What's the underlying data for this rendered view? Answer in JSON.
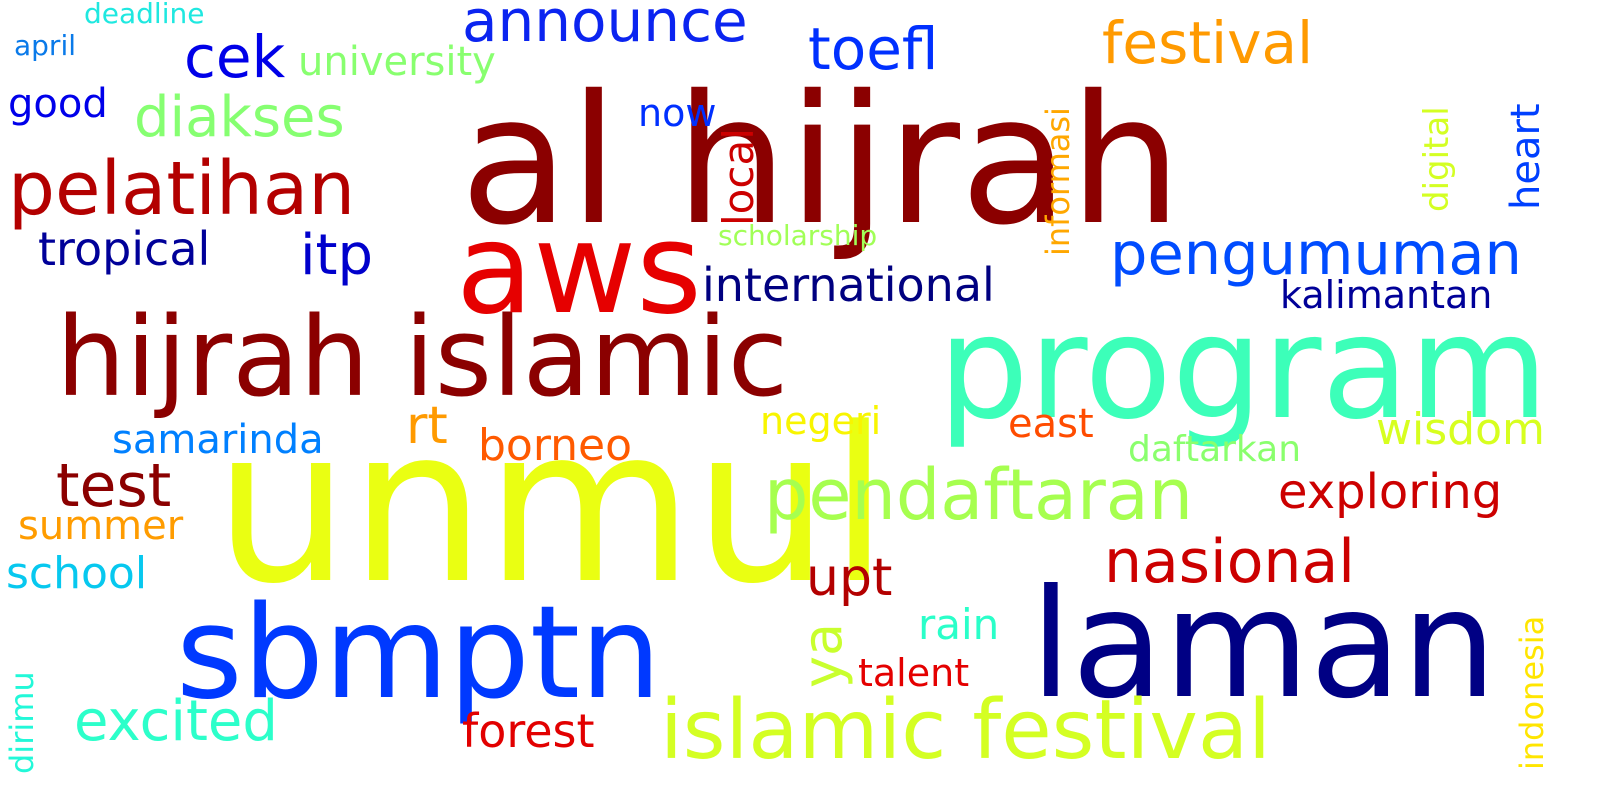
{
  "words": [
    {
      "id": "al-hijrah",
      "text": "al hijrah",
      "color": "#8b0000"
    },
    {
      "id": "unmul",
      "text": "unmul",
      "color": "#eaff12"
    },
    {
      "id": "program",
      "text": "program",
      "color": "#3cffb9"
    },
    {
      "id": "sbmptn",
      "text": "sbmptn",
      "color": "#0039ff"
    },
    {
      "id": "laman",
      "text": "laman",
      "color": "#000084"
    },
    {
      "id": "hijrah-islamic",
      "text": "hijrah islamic",
      "color": "#8b0000"
    },
    {
      "id": "aws",
      "text": "aws",
      "color": "#e60000"
    },
    {
      "id": "islamic-festival",
      "text": "islamic festival",
      "color": "#d4ff23"
    },
    {
      "id": "pendaftaran",
      "text": "pendaftaran",
      "color": "#a6ff4f"
    },
    {
      "id": "pelatihan",
      "text": "pelatihan",
      "color": "#b30000"
    },
    {
      "id": "announce",
      "text": "announce",
      "color": "#0b24f0"
    },
    {
      "id": "festival",
      "text": "festival",
      "color": "#ff9a00"
    },
    {
      "id": "pengumuman",
      "text": "pengumuman",
      "color": "#004cff"
    },
    {
      "id": "nasional",
      "text": "nasional",
      "color": "#cc0000"
    },
    {
      "id": "test",
      "text": "test",
      "color": "#8b0000"
    },
    {
      "id": "excited",
      "text": "excited",
      "color": "#2cffca"
    },
    {
      "id": "toefl",
      "text": "toefl",
      "color": "#0030ff"
    },
    {
      "id": "international",
      "text": "international",
      "color": "#000080"
    },
    {
      "id": "diakses",
      "text": "diakses",
      "color": "#86ff71"
    },
    {
      "id": "cek",
      "text": "cek",
      "color": "#0000e8"
    },
    {
      "id": "itp",
      "text": "itp",
      "color": "#0000cc"
    },
    {
      "id": "exploring",
      "text": "exploring",
      "color": "#cc0000"
    },
    {
      "id": "ya",
      "text": "ya",
      "color": "#c9ff2e"
    },
    {
      "id": "upt",
      "text": "upt",
      "color": "#b30000"
    },
    {
      "id": "tropical",
      "text": "tropical",
      "color": "#000099"
    },
    {
      "id": "borneo",
      "text": "borneo",
      "color": "#ff5a00"
    },
    {
      "id": "wisdom",
      "text": "wisdom",
      "color": "#d7ff1f"
    },
    {
      "id": "kalimantan",
      "text": "kalimantan",
      "color": "#000098"
    },
    {
      "id": "samarinda",
      "text": "samarinda",
      "color": "#0080ff"
    },
    {
      "id": "school",
      "text": "school",
      "color": "#07c8ef"
    },
    {
      "id": "summer",
      "text": "summer",
      "color": "#ff9c00"
    },
    {
      "id": "forest",
      "text": "forest",
      "color": "#e20000"
    },
    {
      "id": "rt",
      "text": "rt",
      "color": "#ff9a00"
    },
    {
      "id": "negeri",
      "text": "negeri",
      "color": "#f8f500"
    },
    {
      "id": "rain",
      "text": "rain",
      "color": "#2affc9"
    },
    {
      "id": "talent",
      "text": "talent",
      "color": "#e40000"
    },
    {
      "id": "good",
      "text": "good",
      "color": "#0000ea"
    },
    {
      "id": "university",
      "text": "university",
      "color": "#88ff6f"
    },
    {
      "id": "east",
      "text": "east",
      "color": "#ff4c00"
    },
    {
      "id": "daftarkan",
      "text": "daftarkan",
      "color": "#8aff6d"
    },
    {
      "id": "now",
      "text": "now",
      "color": "#0030ff"
    },
    {
      "id": "local",
      "text": "local",
      "color": "#cc0000"
    },
    {
      "id": "informasi",
      "text": "informasi",
      "color": "#ffa700"
    },
    {
      "id": "digital",
      "text": "digital",
      "color": "#d4ff23"
    },
    {
      "id": "heart",
      "text": "heart",
      "color": "#0040ff"
    },
    {
      "id": "indonesia",
      "text": "indonesia",
      "color": "#ffe500"
    },
    {
      "id": "dirimu",
      "text": "dirimu",
      "color": "#22f8d8"
    },
    {
      "id": "scholarship",
      "text": "scholarship",
      "color": "#a1ff57"
    },
    {
      "id": "deadline",
      "text": "deadline",
      "color": "#1fe8e0"
    },
    {
      "id": "april",
      "text": "april",
      "color": "#0a7ae9"
    }
  ]
}
